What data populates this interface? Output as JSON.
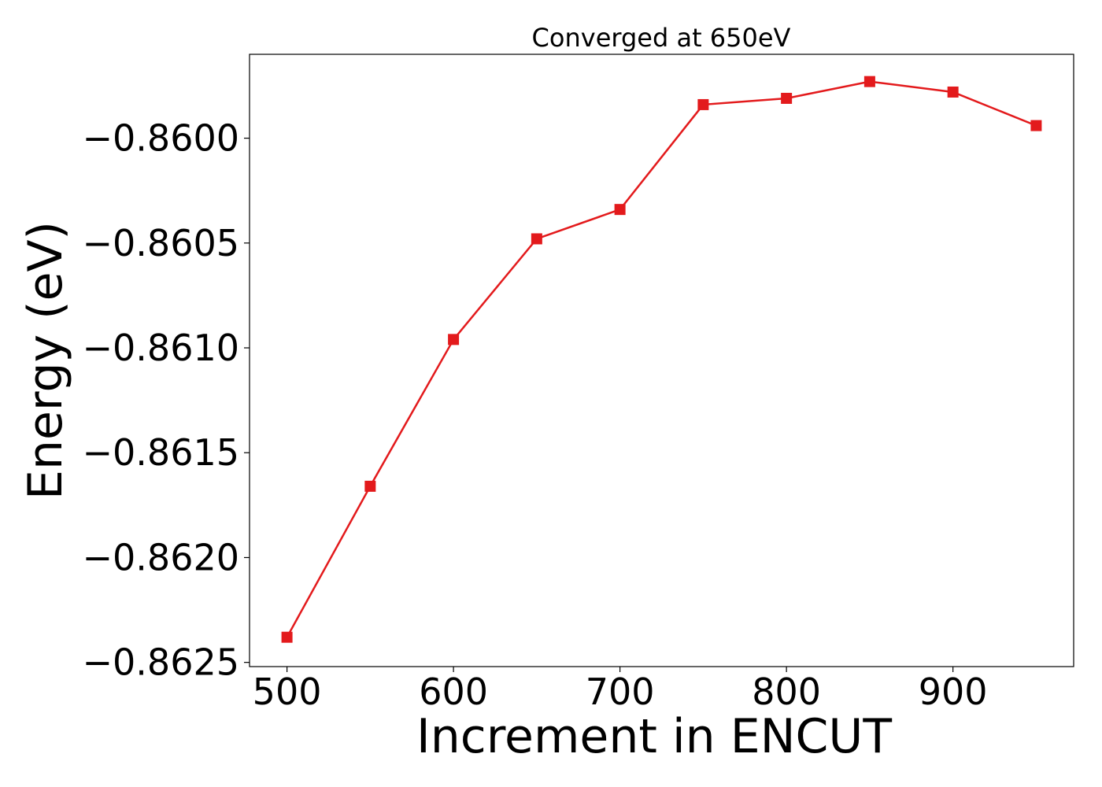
{
  "chart_data": {
    "type": "line",
    "title": "Converged at 650eV",
    "xlabel": "Increment in ENCUT",
    "ylabel": "Energy (eV)",
    "x": [
      500,
      550,
      600,
      650,
      700,
      750,
      800,
      850,
      900,
      950
    ],
    "series": [
      {
        "values": [
          -0.86238,
          -0.86166,
          -0.86096,
          -0.86048,
          -0.86034,
          -0.85984,
          -0.85981,
          -0.85973,
          -0.85978,
          -0.85994
        ],
        "color": "#e31a1c",
        "marker": "square"
      }
    ],
    "xlim": [
      477.5,
      972.5
    ],
    "ylim": [
      -0.86252,
      -0.8596
    ],
    "xticks": [
      500,
      600,
      700,
      800,
      900
    ],
    "xtick_labels": [
      "500",
      "600",
      "700",
      "800",
      "900"
    ],
    "yticks": [
      -0.8625,
      -0.862,
      -0.8615,
      -0.861,
      -0.8605,
      -0.86
    ],
    "ytick_labels": [
      "−0.8625",
      "−0.8620",
      "−0.8615",
      "−0.8610",
      "−0.8605",
      "−0.8600"
    ],
    "grid": false,
    "legend": "none"
  }
}
